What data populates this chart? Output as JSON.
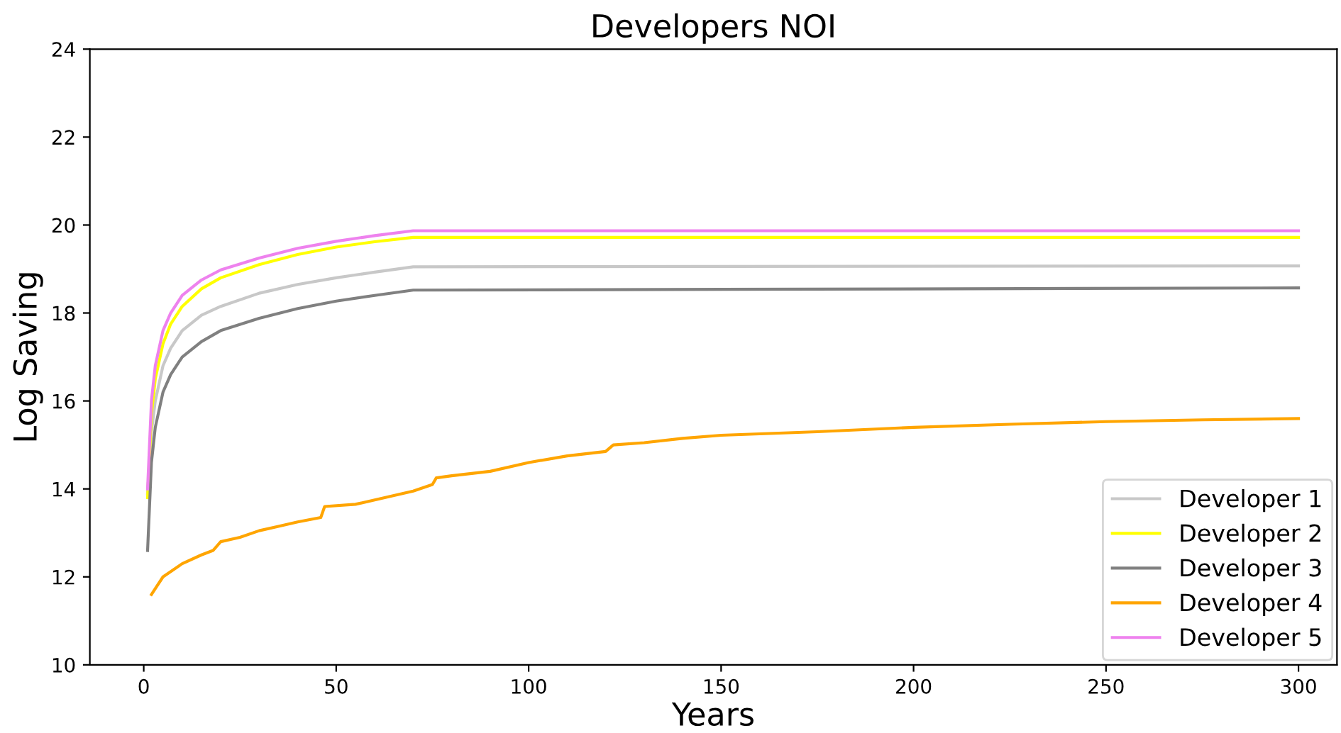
{
  "chart_data": {
    "type": "line",
    "title": "Developers NOI",
    "xlabel": "Years",
    "ylabel": "Log Saving",
    "xlim": [
      -14,
      310
    ],
    "xticks": [
      0,
      50,
      100,
      150,
      200,
      250,
      300
    ],
    "ylim": [
      10,
      24
    ],
    "yticks": [
      10,
      12,
      14,
      16,
      18,
      20,
      22,
      24
    ],
    "grid": false,
    "legend": "bottom right",
    "series": [
      {
        "name": "Developer 1",
        "color": "#c8c8c8",
        "x": [
          1,
          2,
          3,
          5,
          7,
          10,
          15,
          20,
          30,
          40,
          50,
          60,
          70,
          300
        ],
        "values": [
          13.9,
          15.3,
          16.0,
          16.8,
          17.2,
          17.6,
          17.95,
          18.15,
          18.45,
          18.65,
          18.8,
          18.93,
          19.05,
          19.07
        ]
      },
      {
        "name": "Developer 2",
        "color": "#ffff00",
        "x": [
          1,
          2,
          3,
          5,
          7,
          10,
          15,
          20,
          30,
          40,
          50,
          60,
          70,
          300
        ],
        "values": [
          13.8,
          15.7,
          16.5,
          17.3,
          17.75,
          18.15,
          18.55,
          18.8,
          19.1,
          19.33,
          19.5,
          19.62,
          19.72,
          19.72
        ]
      },
      {
        "name": "Developer 3",
        "color": "#808080",
        "x": [
          1,
          2,
          3,
          5,
          7,
          10,
          15,
          20,
          30,
          40,
          50,
          60,
          70,
          300
        ],
        "values": [
          12.6,
          14.6,
          15.4,
          16.2,
          16.6,
          17.0,
          17.35,
          17.6,
          17.88,
          18.1,
          18.27,
          18.4,
          18.52,
          18.57
        ]
      },
      {
        "name": "Developer 4",
        "color": "#ffa500",
        "x": [
          2,
          5,
          10,
          15,
          18,
          20,
          25,
          30,
          35,
          40,
          46,
          47,
          55,
          60,
          65,
          70,
          75,
          76,
          80,
          90,
          100,
          110,
          120,
          122,
          130,
          140,
          150,
          175,
          200,
          225,
          250,
          275,
          300
        ],
        "values": [
          11.6,
          12.0,
          12.3,
          12.5,
          12.6,
          12.8,
          12.9,
          13.05,
          13.15,
          13.25,
          13.35,
          13.6,
          13.65,
          13.75,
          13.85,
          13.95,
          14.1,
          14.25,
          14.3,
          14.4,
          14.6,
          14.75,
          14.85,
          15.0,
          15.05,
          15.15,
          15.22,
          15.3,
          15.4,
          15.47,
          15.53,
          15.57,
          15.6
        ]
      },
      {
        "name": "Developer 5",
        "color": "#ee82ee",
        "x": [
          1,
          2,
          3,
          5,
          7,
          10,
          15,
          20,
          30,
          40,
          50,
          60,
          70,
          300
        ],
        "values": [
          14.0,
          16.0,
          16.8,
          17.6,
          18.0,
          18.4,
          18.75,
          18.98,
          19.25,
          19.47,
          19.63,
          19.76,
          19.87,
          19.87
        ]
      }
    ]
  }
}
